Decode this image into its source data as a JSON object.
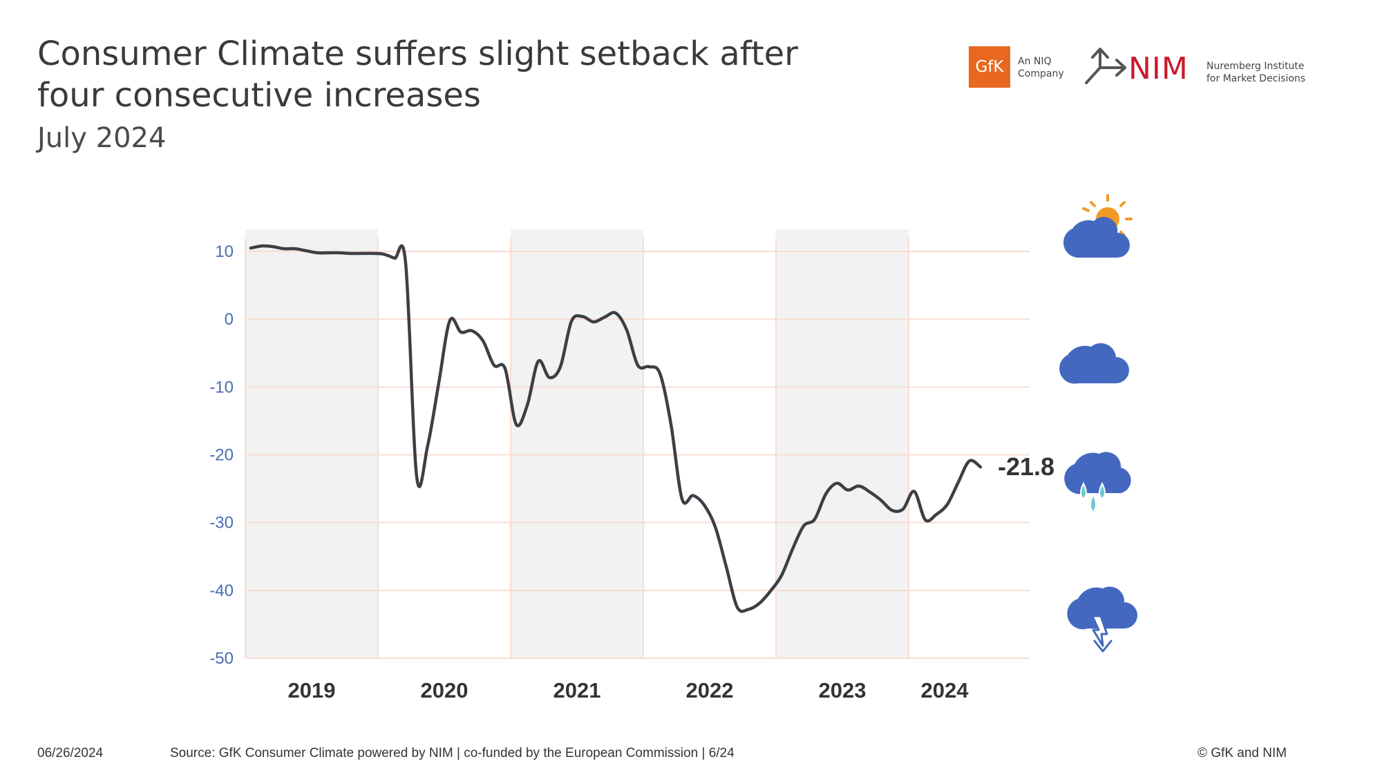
{
  "header": {
    "title": "Consumer Climate suffers slight setback after four consecutive increases",
    "subtitle": "July 2024"
  },
  "logos": {
    "gfk": {
      "mark": "GfK",
      "line1": "An NIQ",
      "line2": "Company",
      "color": "#e8681f"
    },
    "nim": {
      "mark": "NIM",
      "line1": "Nuremberg Institute",
      "line2": "for Market Decisions",
      "color": "#c8192e"
    }
  },
  "chart_data": {
    "type": "line",
    "title": "",
    "xlabel": "",
    "ylabel": "",
    "ylim": [
      -50,
      10
    ],
    "yticks": [
      10,
      0,
      -10,
      -20,
      -30,
      -40,
      -50
    ],
    "ytick_labels": [
      "10",
      "0",
      "-10",
      "-20",
      "-30",
      "-40",
      "-50"
    ],
    "year_labels": [
      "2019",
      "2020",
      "2021",
      "2022",
      "2023",
      "2024"
    ],
    "shaded_years": [
      "2019",
      "2021",
      "2023"
    ],
    "grid": true,
    "last_value_label": "-21.8",
    "line_color": "#3c3f44",
    "grid_color": "#f8ddd2",
    "shade_color": "#f2f2f2",
    "series": [
      {
        "x": [
          "2019-01",
          "2019-02",
          "2019-03",
          "2019-04",
          "2019-05",
          "2019-06",
          "2019-07",
          "2019-08",
          "2019-09",
          "2019-10",
          "2019-11",
          "2019-12",
          "2020-01",
          "2020-02",
          "2020-03",
          "2020-04",
          "2020-05",
          "2020-06",
          "2020-07",
          "2020-08",
          "2020-09",
          "2020-10",
          "2020-11",
          "2020-12",
          "2021-01",
          "2021-02",
          "2021-03",
          "2021-04",
          "2021-05",
          "2021-06",
          "2021-07",
          "2021-08",
          "2021-09",
          "2021-10",
          "2021-11",
          "2021-12",
          "2022-01",
          "2022-02",
          "2022-03",
          "2022-04",
          "2022-05",
          "2022-06",
          "2022-07",
          "2022-08",
          "2022-09",
          "2022-10",
          "2022-11",
          "2022-12",
          "2023-01",
          "2023-02",
          "2023-03",
          "2023-04",
          "2023-05",
          "2023-06",
          "2023-07",
          "2023-08",
          "2023-09",
          "2023-10",
          "2023-11",
          "2023-12",
          "2024-01",
          "2024-02",
          "2024-03",
          "2024-04",
          "2024-05",
          "2024-06",
          "2024-07"
        ],
        "values": [
          10.5,
          10.8,
          10.7,
          10.4,
          10.4,
          10.1,
          9.8,
          9.8,
          9.8,
          9.7,
          9.7,
          9.7,
          9.6,
          9.0,
          8.3,
          -23.2,
          -18.6,
          -9.4,
          -0.2,
          -1.9,
          -1.7,
          -3.2,
          -6.8,
          -7.3,
          -15.5,
          -12.7,
          -6.2,
          -8.6,
          -7.0,
          -0.3,
          0.4,
          -0.4,
          0.3,
          0.9,
          -1.6,
          -6.8,
          -7.0,
          -8.0,
          -15.5,
          -26.5,
          -26.0,
          -27.4,
          -30.6,
          -36.5,
          -42.5,
          -42.8,
          -41.9,
          -40.1,
          -37.8,
          -33.9,
          -30.5,
          -29.5,
          -25.8,
          -24.2,
          -25.2,
          -24.6,
          -25.5,
          -26.7,
          -28.2,
          -28.0,
          -25.4,
          -29.6,
          -28.8,
          -27.3,
          -24.0,
          -20.9,
          -21.8
        ]
      }
    ]
  },
  "icons": [
    "sun-cloud-icon",
    "cloud-icon",
    "rain-cloud-icon",
    "thunder-cloud-icon"
  ],
  "footer": {
    "date": "06/26/2024",
    "source": "Source: GfK Consumer Climate powered by NIM | co-funded by the European Commission | 6/24",
    "copyright": "© GfK and NIM"
  }
}
